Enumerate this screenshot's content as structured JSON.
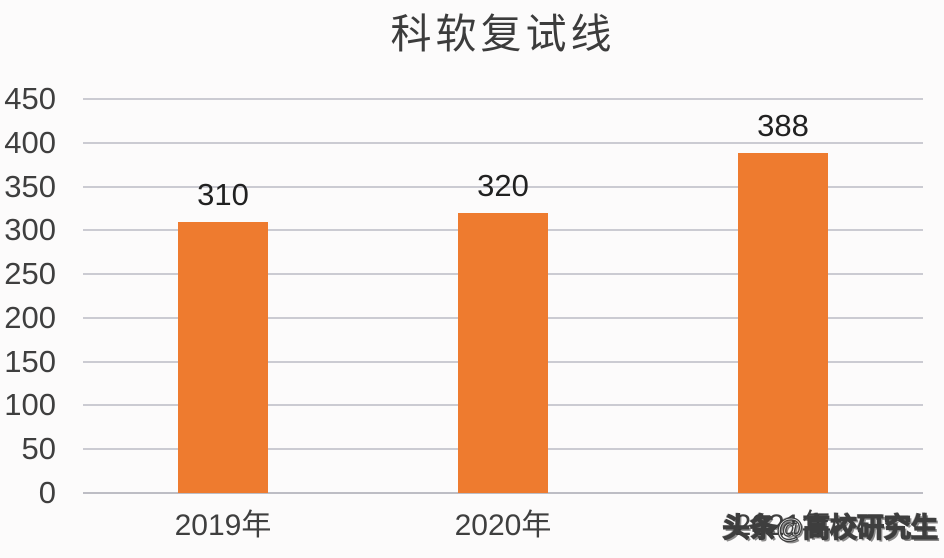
{
  "title": "科软复试线",
  "watermark": {
    "text": "头条@高校研究生"
  },
  "colors": {
    "background": "#FCFBFB",
    "bar": "#EE7B2F",
    "grid": "#CBCBD2",
    "baseline": "#BDBDC4",
    "title_text": "#3C3C3C",
    "axis_text": "#3F3F3F",
    "value_text": "#212121",
    "watermark_fill": "#FFFFFF",
    "watermark_outline": "#3E3E3E"
  },
  "chart_data": {
    "type": "bar",
    "title": "科软复试线",
    "categories": [
      "2019年",
      "2020年",
      "2021年"
    ],
    "values": [
      310,
      320,
      388
    ],
    "bar_labels": [
      "310",
      "320",
      "388"
    ],
    "xlabel": "",
    "ylabel": "",
    "ylim": [
      0,
      450
    ],
    "yticks": [
      0,
      50,
      100,
      150,
      200,
      250,
      300,
      350,
      400,
      450
    ],
    "grid": true,
    "legend": false,
    "legend_position": "none",
    "bar_color": "#EE7B2F",
    "annotations": [
      "头条@高校研究生"
    ]
  }
}
